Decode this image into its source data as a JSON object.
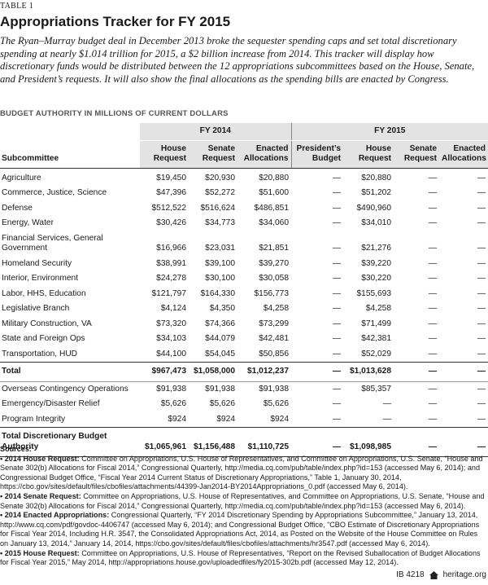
{
  "header": {
    "label": "TABLE 1",
    "title": "Appropriations Tracker for FY 2015",
    "intro": "The Ryan–Murray budget deal in December 2013 broke the sequester spending caps and set total discretionary spending at nearly $1.014 trillion for 2015, a $2 billion increase from 2014. This tracker will display how discretionary funds would be distributed between the 12 appropriations subcommittees based on the House, Senate, and President’s requests. It will also show the final allocations as the spending bills are enacted by Congress.",
    "subtitle": "BUDGET AUTHORITY IN MILLIONS OF CURRENT DOLLARS"
  },
  "table": {
    "group_headers": [
      "FY 2014",
      "FY 2015"
    ],
    "columns": [
      "Subcommittee",
      "House Request",
      "Senate Request",
      "Enacted Allocations",
      "President’s Budget",
      "House Request",
      "Senate Request",
      "Enacted Allocations"
    ],
    "rows": [
      {
        "name": "Agriculture",
        "cells": [
          "$19,450",
          "$20,930",
          "$20,880",
          "—",
          "$20,880",
          "—",
          "—"
        ]
      },
      {
        "name": "Commerce, Justice, Science",
        "cells": [
          "$47,396",
          "$52,272",
          "$51,600",
          "—",
          "$51,202",
          "—",
          "—"
        ]
      },
      {
        "name": "Defense",
        "cells": [
          "$512,522",
          "$516,624",
          "$486,851",
          "—",
          "$490,960",
          "—",
          "—"
        ]
      },
      {
        "name": "Energy, Water",
        "cells": [
          "$30,426",
          "$34,773",
          "$34,060",
          "—",
          "$34,010",
          "—",
          "—"
        ]
      },
      {
        "name": "Financial Services, General Government",
        "cells": [
          "$16,966",
          "$23,031",
          "$21,851",
          "—",
          "$21,276",
          "—",
          "—"
        ]
      },
      {
        "name": "Homeland Security",
        "cells": [
          "$38,991",
          "$39,100",
          "$39,270",
          "—",
          "$39,220",
          "—",
          "—"
        ]
      },
      {
        "name": "Interior, Environment",
        "cells": [
          "$24,278",
          "$30,100",
          "$30,058",
          "—",
          "$30,220",
          "—",
          "—"
        ]
      },
      {
        "name": "Labor, HHS, Education",
        "cells": [
          "$121,797",
          "$164,330",
          "$156,773",
          "—",
          "$155,693",
          "—",
          "—"
        ]
      },
      {
        "name": "Legislative Branch",
        "cells": [
          "$4,124",
          "$4,350",
          "$4,258",
          "—",
          "$4,258",
          "—",
          "—"
        ]
      },
      {
        "name": "Military Construction, VA",
        "cells": [
          "$73,320",
          "$74,366",
          "$73,299",
          "—",
          "$71,499",
          "—",
          "—"
        ]
      },
      {
        "name": "State and Foreign Ops",
        "cells": [
          "$34,103",
          "$44,079",
          "$42,481",
          "—",
          "$42,381",
          "—",
          "—"
        ]
      },
      {
        "name": "Transportation, HUD",
        "cells": [
          "$44,100",
          "$54,045",
          "$50,856",
          "—",
          "$52,029",
          "—",
          "—"
        ]
      }
    ],
    "total": {
      "name": "Total",
      "cells": [
        "$967,473",
        "$1,058,000",
        "$1,012,237",
        "—",
        "$1,013,628",
        "—",
        "—"
      ]
    },
    "other_rows": [
      {
        "name": "Overseas Contingency Operations",
        "cells": [
          "$91,938",
          "$91,938",
          "$91,938",
          "—",
          "$85,357",
          "—",
          "—"
        ]
      },
      {
        "name": "Emergency/Disaster Relief",
        "cells": [
          "$5,626",
          "$5,626",
          "$5,626",
          "—",
          "—",
          "—",
          "—"
        ]
      },
      {
        "name": "Program Integrity",
        "cells": [
          "$924",
          "$924",
          "$924",
          "—",
          "—",
          "—",
          "—"
        ]
      }
    ],
    "grand_total": {
      "name": "Total Discretionary Budget Authority",
      "cells": [
        "$1,065,961",
        "$1,156,488",
        "$1,110,725",
        "—",
        "$1,098,985",
        "—",
        "—"
      ]
    }
  },
  "sources": {
    "heading": "Sources:",
    "items": [
      {
        "lead": "• 2014 House Request:",
        "text": "Committee on Appropriations, U.S. House of Representatives, and Committee on Appropriations, U.S. Senate, “House and Senate 302(b) Allocations for Fiscal 2014,” Congressional Quarterly, http://media.cq.com/pub/table/index.php?id=153 (accessed May 6, 2014); and Congressional Budget Office, “Fiscal Year 2014 Current Status of Discretionary Appropriations,” Table 1, January 30, 2014, https://cbo.gov/sites/default/files/cbofiles/attachments/44399-Jan2014-BY2014Appropriations_0.pdf (accessed May 6, 2014)."
      },
      {
        "lead": "• 2014 Senate Request:",
        "text": "Committee on Appropriations, U.S. House of Representatives, and Committee on Appropriations, U.S. Senate, “House and Senate 302(b) Allocations for Fiscal 2014,” Congressional Quarterly, http://media.cq.com/pub/table/index.php?id=153 (accessed May 6, 2014)."
      },
      {
        "lead": "• 2014 Enacted Appropriations:",
        "text": "Congressional Quarterly, “FY 2014 Discretionary Spending by Appropriations Subcommittee,” January 13, 2014, http://www.cq.com/pdf/govdoc-4406747 (accessed May 6, 2014); and Congressional Budget Office, “CBO Estimate of Discretionary Appropriations for Fiscal Year 2014, Including H.R. 3547, the Consolidated Appropriations Act, 2014, as Posted on the Website of the House Committee on Rules on January 13, 2014,” January 14, 2014, https://cbo.gov/sites/default/files/cbofiles/attachments/hr3547.pdf (accessed May 6, 2014)."
      },
      {
        "lead": "• 2015 House Request:",
        "text": "Committee on Appropriations, U.S. House of Representatives, “Report on the Revised Suballocation of Budget Allocations for Fiscal Year 2015,” May 2014, http://appropriations.house.gov/uploadedfiles/fy2015-302b.pdf (accessed May 12, 2014)."
      }
    ]
  },
  "footer": {
    "id": "IB 4218",
    "site": "heritage.org"
  }
}
